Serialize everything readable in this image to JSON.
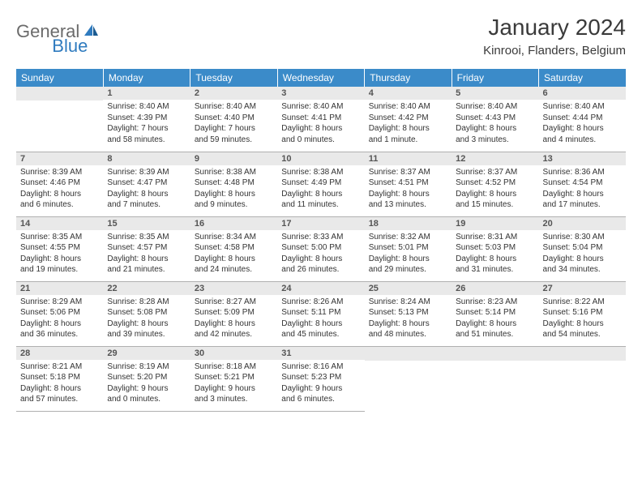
{
  "logo": {
    "general": "General",
    "blue": "Blue"
  },
  "title": "January 2024",
  "location": "Kinrooi, Flanders, Belgium",
  "colors": {
    "header_bg": "#3b8bc9",
    "header_text": "#ffffff",
    "daynum_bg": "#e9e9e9",
    "border": "#b0b0b0",
    "logo_gray": "#6b6b6b",
    "logo_blue": "#2f7bbf"
  },
  "weekdays": [
    "Sunday",
    "Monday",
    "Tuesday",
    "Wednesday",
    "Thursday",
    "Friday",
    "Saturday"
  ],
  "weeks": [
    [
      {
        "n": "",
        "lines": []
      },
      {
        "n": "1",
        "lines": [
          "Sunrise: 8:40 AM",
          "Sunset: 4:39 PM",
          "Daylight: 7 hours",
          "and 58 minutes."
        ]
      },
      {
        "n": "2",
        "lines": [
          "Sunrise: 8:40 AM",
          "Sunset: 4:40 PM",
          "Daylight: 7 hours",
          "and 59 minutes."
        ]
      },
      {
        "n": "3",
        "lines": [
          "Sunrise: 8:40 AM",
          "Sunset: 4:41 PM",
          "Daylight: 8 hours",
          "and 0 minutes."
        ]
      },
      {
        "n": "4",
        "lines": [
          "Sunrise: 8:40 AM",
          "Sunset: 4:42 PM",
          "Daylight: 8 hours",
          "and 1 minute."
        ]
      },
      {
        "n": "5",
        "lines": [
          "Sunrise: 8:40 AM",
          "Sunset: 4:43 PM",
          "Daylight: 8 hours",
          "and 3 minutes."
        ]
      },
      {
        "n": "6",
        "lines": [
          "Sunrise: 8:40 AM",
          "Sunset: 4:44 PM",
          "Daylight: 8 hours",
          "and 4 minutes."
        ]
      }
    ],
    [
      {
        "n": "7",
        "lines": [
          "Sunrise: 8:39 AM",
          "Sunset: 4:46 PM",
          "Daylight: 8 hours",
          "and 6 minutes."
        ]
      },
      {
        "n": "8",
        "lines": [
          "Sunrise: 8:39 AM",
          "Sunset: 4:47 PM",
          "Daylight: 8 hours",
          "and 7 minutes."
        ]
      },
      {
        "n": "9",
        "lines": [
          "Sunrise: 8:38 AM",
          "Sunset: 4:48 PM",
          "Daylight: 8 hours",
          "and 9 minutes."
        ]
      },
      {
        "n": "10",
        "lines": [
          "Sunrise: 8:38 AM",
          "Sunset: 4:49 PM",
          "Daylight: 8 hours",
          "and 11 minutes."
        ]
      },
      {
        "n": "11",
        "lines": [
          "Sunrise: 8:37 AM",
          "Sunset: 4:51 PM",
          "Daylight: 8 hours",
          "and 13 minutes."
        ]
      },
      {
        "n": "12",
        "lines": [
          "Sunrise: 8:37 AM",
          "Sunset: 4:52 PM",
          "Daylight: 8 hours",
          "and 15 minutes."
        ]
      },
      {
        "n": "13",
        "lines": [
          "Sunrise: 8:36 AM",
          "Sunset: 4:54 PM",
          "Daylight: 8 hours",
          "and 17 minutes."
        ]
      }
    ],
    [
      {
        "n": "14",
        "lines": [
          "Sunrise: 8:35 AM",
          "Sunset: 4:55 PM",
          "Daylight: 8 hours",
          "and 19 minutes."
        ]
      },
      {
        "n": "15",
        "lines": [
          "Sunrise: 8:35 AM",
          "Sunset: 4:57 PM",
          "Daylight: 8 hours",
          "and 21 minutes."
        ]
      },
      {
        "n": "16",
        "lines": [
          "Sunrise: 8:34 AM",
          "Sunset: 4:58 PM",
          "Daylight: 8 hours",
          "and 24 minutes."
        ]
      },
      {
        "n": "17",
        "lines": [
          "Sunrise: 8:33 AM",
          "Sunset: 5:00 PM",
          "Daylight: 8 hours",
          "and 26 minutes."
        ]
      },
      {
        "n": "18",
        "lines": [
          "Sunrise: 8:32 AM",
          "Sunset: 5:01 PM",
          "Daylight: 8 hours",
          "and 29 minutes."
        ]
      },
      {
        "n": "19",
        "lines": [
          "Sunrise: 8:31 AM",
          "Sunset: 5:03 PM",
          "Daylight: 8 hours",
          "and 31 minutes."
        ]
      },
      {
        "n": "20",
        "lines": [
          "Sunrise: 8:30 AM",
          "Sunset: 5:04 PM",
          "Daylight: 8 hours",
          "and 34 minutes."
        ]
      }
    ],
    [
      {
        "n": "21",
        "lines": [
          "Sunrise: 8:29 AM",
          "Sunset: 5:06 PM",
          "Daylight: 8 hours",
          "and 36 minutes."
        ]
      },
      {
        "n": "22",
        "lines": [
          "Sunrise: 8:28 AM",
          "Sunset: 5:08 PM",
          "Daylight: 8 hours",
          "and 39 minutes."
        ]
      },
      {
        "n": "23",
        "lines": [
          "Sunrise: 8:27 AM",
          "Sunset: 5:09 PM",
          "Daylight: 8 hours",
          "and 42 minutes."
        ]
      },
      {
        "n": "24",
        "lines": [
          "Sunrise: 8:26 AM",
          "Sunset: 5:11 PM",
          "Daylight: 8 hours",
          "and 45 minutes."
        ]
      },
      {
        "n": "25",
        "lines": [
          "Sunrise: 8:24 AM",
          "Sunset: 5:13 PM",
          "Daylight: 8 hours",
          "and 48 minutes."
        ]
      },
      {
        "n": "26",
        "lines": [
          "Sunrise: 8:23 AM",
          "Sunset: 5:14 PM",
          "Daylight: 8 hours",
          "and 51 minutes."
        ]
      },
      {
        "n": "27",
        "lines": [
          "Sunrise: 8:22 AM",
          "Sunset: 5:16 PM",
          "Daylight: 8 hours",
          "and 54 minutes."
        ]
      }
    ],
    [
      {
        "n": "28",
        "lines": [
          "Sunrise: 8:21 AM",
          "Sunset: 5:18 PM",
          "Daylight: 8 hours",
          "and 57 minutes."
        ]
      },
      {
        "n": "29",
        "lines": [
          "Sunrise: 8:19 AM",
          "Sunset: 5:20 PM",
          "Daylight: 9 hours",
          "and 0 minutes."
        ]
      },
      {
        "n": "30",
        "lines": [
          "Sunrise: 8:18 AM",
          "Sunset: 5:21 PM",
          "Daylight: 9 hours",
          "and 3 minutes."
        ]
      },
      {
        "n": "31",
        "lines": [
          "Sunrise: 8:16 AM",
          "Sunset: 5:23 PM",
          "Daylight: 9 hours",
          "and 6 minutes."
        ]
      },
      {
        "n": "",
        "lines": []
      },
      {
        "n": "",
        "lines": []
      },
      {
        "n": "",
        "lines": []
      }
    ]
  ]
}
